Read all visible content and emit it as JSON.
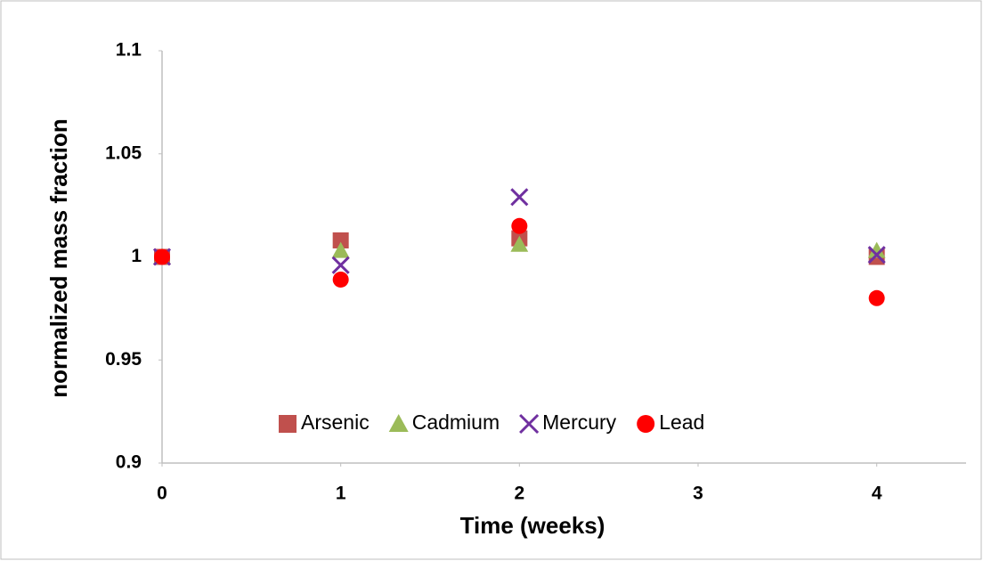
{
  "chart_data": {
    "type": "scatter",
    "x_label": "Time (weeks)",
    "y_label": "normalized mass fraction",
    "x": [
      0,
      1,
      2,
      4
    ],
    "series": [
      {
        "name": "Arsenic",
        "color": "#c0504d",
        "marker": "square",
        "values": [
          1.0,
          1.008,
          1.009,
          1.0
        ]
      },
      {
        "name": "Cadmium",
        "color": "#9bbb59",
        "marker": "triangle",
        "values": [
          1.0,
          1.003,
          1.006,
          1.003
        ]
      },
      {
        "name": "Mercury",
        "color": "#7030a0",
        "marker": "x",
        "values": [
          1.0,
          0.996,
          1.029,
          1.001
        ]
      },
      {
        "name": "Lead",
        "color": "#ff0000",
        "marker": "circle",
        "values": [
          1.0,
          0.989,
          1.015,
          0.98
        ]
      }
    ],
    "xlim": [
      0,
      4.5
    ],
    "xticks": [
      0,
      1,
      2,
      3,
      4
    ],
    "ylim": [
      0.9,
      1.1
    ],
    "yticks": [
      0.9,
      0.95,
      1,
      1.05,
      1.1
    ],
    "legend": "bottom"
  }
}
